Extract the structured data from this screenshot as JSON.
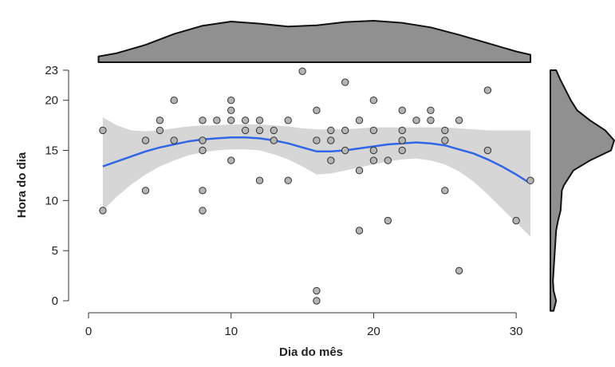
{
  "chart_data": {
    "type": "scatter",
    "xlabel": "Dia do mês",
    "ylabel": "Hora do dia",
    "xlim": [
      0,
      31
    ],
    "ylim": [
      0,
      23
    ],
    "x_ticks": [
      0,
      10,
      20,
      30
    ],
    "y_ticks": [
      0,
      5,
      10,
      15,
      20,
      23
    ],
    "grid": false,
    "colors": {
      "points_fill": "#b4b4b4",
      "points_stroke": "#333333",
      "smooth_line": "#3366e6",
      "confidence_band": "#d6d6d6",
      "marginal_density": "#909090"
    },
    "points": [
      {
        "x": 1,
        "y": 17
      },
      {
        "x": 1,
        "y": 9
      },
      {
        "x": 4,
        "y": 16
      },
      {
        "x": 4,
        "y": 11
      },
      {
        "x": 5,
        "y": 18
      },
      {
        "x": 5,
        "y": 17
      },
      {
        "x": 6,
        "y": 20
      },
      {
        "x": 6,
        "y": 16
      },
      {
        "x": 8,
        "y": 18
      },
      {
        "x": 8,
        "y": 16
      },
      {
        "x": 8,
        "y": 15
      },
      {
        "x": 8,
        "y": 11
      },
      {
        "x": 8,
        "y": 9
      },
      {
        "x": 9,
        "y": 18
      },
      {
        "x": 10,
        "y": 20
      },
      {
        "x": 10,
        "y": 19
      },
      {
        "x": 10,
        "y": 18
      },
      {
        "x": 10,
        "y": 14
      },
      {
        "x": 11,
        "y": 18
      },
      {
        "x": 11,
        "y": 17
      },
      {
        "x": 12,
        "y": 18
      },
      {
        "x": 12,
        "y": 17
      },
      {
        "x": 12,
        "y": 12
      },
      {
        "x": 13,
        "y": 17
      },
      {
        "x": 13,
        "y": 16
      },
      {
        "x": 14,
        "y": 18
      },
      {
        "x": 14,
        "y": 12
      },
      {
        "x": 15,
        "y": 22.9
      },
      {
        "x": 16,
        "y": 19
      },
      {
        "x": 16,
        "y": 16
      },
      {
        "x": 16,
        "y": 1
      },
      {
        "x": 16,
        "y": 0
      },
      {
        "x": 17,
        "y": 17
      },
      {
        "x": 17,
        "y": 16
      },
      {
        "x": 17,
        "y": 14
      },
      {
        "x": 18,
        "y": 21.8
      },
      {
        "x": 18,
        "y": 17
      },
      {
        "x": 18,
        "y": 15
      },
      {
        "x": 19,
        "y": 18
      },
      {
        "x": 19,
        "y": 13
      },
      {
        "x": 19,
        "y": 7
      },
      {
        "x": 20,
        "y": 20
      },
      {
        "x": 20,
        "y": 17
      },
      {
        "x": 20,
        "y": 15
      },
      {
        "x": 20,
        "y": 14
      },
      {
        "x": 21,
        "y": 14
      },
      {
        "x": 21,
        "y": 8
      },
      {
        "x": 22,
        "y": 19
      },
      {
        "x": 22,
        "y": 17
      },
      {
        "x": 22,
        "y": 16
      },
      {
        "x": 22,
        "y": 15
      },
      {
        "x": 23,
        "y": 18
      },
      {
        "x": 24,
        "y": 19
      },
      {
        "x": 24,
        "y": 18
      },
      {
        "x": 25,
        "y": 17
      },
      {
        "x": 25,
        "y": 16
      },
      {
        "x": 25,
        "y": 11
      },
      {
        "x": 26,
        "y": 18
      },
      {
        "x": 26,
        "y": 3
      },
      {
        "x": 28,
        "y": 21
      },
      {
        "x": 28,
        "y": 15
      },
      {
        "x": 30,
        "y": 8
      },
      {
        "x": 31,
        "y": 12
      }
    ],
    "smooth_curve": {
      "x": [
        1,
        2,
        3,
        4,
        5,
        6,
        7,
        8,
        9,
        10,
        11,
        12,
        13,
        14,
        15,
        16,
        17,
        18,
        19,
        20,
        21,
        22,
        23,
        24,
        25,
        26,
        27,
        28,
        29,
        30,
        31
      ],
      "y": [
        13.4,
        13.9,
        14.4,
        14.9,
        15.3,
        15.6,
        15.9,
        16.1,
        16.2,
        16.3,
        16.3,
        16.2,
        16.0,
        15.7,
        15.3,
        14.9,
        14.9,
        15.0,
        15.2,
        15.4,
        15.6,
        15.7,
        15.8,
        15.7,
        15.5,
        15.1,
        14.7,
        14.1,
        13.4,
        12.6,
        11.7
      ],
      "lower": [
        9.0,
        10.4,
        11.6,
        12.6,
        13.4,
        14.0,
        14.5,
        14.8,
        15.0,
        15.1,
        15.1,
        15.0,
        14.6,
        14.1,
        13.4,
        12.6,
        12.7,
        13.0,
        13.3,
        13.6,
        13.9,
        14.1,
        14.2,
        14.0,
        13.6,
        12.9,
        11.9,
        10.6,
        9.2,
        7.8,
        6.4
      ],
      "upper": [
        18.3,
        17.5,
        17.0,
        16.9,
        17.0,
        17.2,
        17.4,
        17.5,
        17.5,
        17.6,
        17.6,
        17.6,
        17.5,
        17.4,
        17.2,
        17.1,
        17.1,
        17.1,
        17.2,
        17.3,
        17.3,
        17.3,
        17.3,
        17.3,
        17.3,
        17.2,
        17.1,
        17.0,
        17.0,
        17.0,
        17.0
      ]
    },
    "marginal_x_density": {
      "x": [
        0.7,
        2,
        4,
        6,
        8,
        10,
        12,
        14,
        16,
        18,
        20,
        22,
        24,
        26,
        28,
        30,
        31
      ],
      "density": [
        0.14,
        0.22,
        0.42,
        0.68,
        0.88,
        0.98,
        0.93,
        0.86,
        0.89,
        0.97,
        1.0,
        0.95,
        0.84,
        0.66,
        0.46,
        0.26,
        0.18
      ]
    },
    "marginal_y_density": {
      "y": [
        -1,
        0,
        1,
        2,
        3,
        5,
        7,
        8,
        9,
        10,
        11,
        11.5,
        12,
        13,
        14,
        15,
        16,
        17,
        18,
        19,
        20,
        21,
        22,
        23
      ],
      "density": [
        0.05,
        0.09,
        0.05,
        0.04,
        0.05,
        0.07,
        0.09,
        0.12,
        0.16,
        0.17,
        0.18,
        0.21,
        0.26,
        0.36,
        0.62,
        0.95,
        1.0,
        0.86,
        0.62,
        0.42,
        0.32,
        0.24,
        0.16,
        0.09
      ]
    }
  }
}
